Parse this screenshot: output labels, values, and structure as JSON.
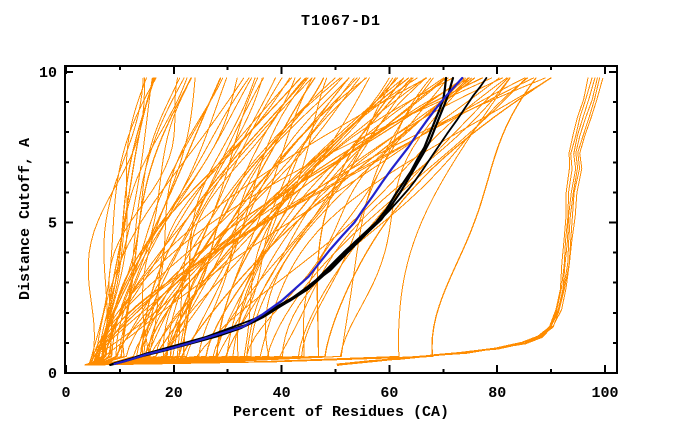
{
  "chart_data": {
    "type": "line",
    "title": "T1067-D1",
    "xlabel": "Percent of Residues (CA)",
    "ylabel": "Distance Cutoff, A",
    "xlim": [
      0,
      102
    ],
    "ylim": [
      0,
      10.2
    ],
    "grid": false,
    "legend": false,
    "background": "#ffffff",
    "axis_color": "#000000",
    "x_axis": {
      "major_ticks": [
        0,
        20,
        40,
        60,
        80,
        100
      ],
      "major_labels": [
        "0",
        "20",
        "40",
        "60",
        "80",
        "100"
      ],
      "minor_ticks": [
        10,
        30,
        50,
        70,
        90
      ]
    },
    "y_axis": {
      "major_ticks": [
        0,
        5,
        10
      ],
      "major_labels": [
        "0",
        "5",
        "10"
      ],
      "minor_ticks": [
        1,
        2,
        3,
        4,
        6,
        7,
        8,
        9
      ]
    },
    "colors": {
      "orange": "#FF8C00",
      "black": "#000000",
      "blue": "#2222CC"
    },
    "series": [
      {
        "id": "orange_models",
        "kind": "generated-bundle",
        "label": "predicted models (orange bundle)",
        "color": "#FF8C00",
        "count": 95,
        "seed": 42,
        "start_x_range": [
          3.5,
          5.5
        ],
        "start_y": 0.27,
        "top_y": 9.8,
        "top_x_range": [
          13,
          90
        ],
        "bottom_sweep_max_x": 68
      },
      {
        "id": "right_outlier_models",
        "kind": "bundle-from-points",
        "label": "outlier model group (orange, right side)",
        "color": "#FF8C00",
        "count": 6,
        "points": [
          [
            50.5,
            0.28
          ],
          [
            56,
            0.38
          ],
          [
            62,
            0.48
          ],
          [
            68,
            0.58
          ],
          [
            74,
            0.68
          ],
          [
            80,
            0.82
          ],
          [
            85,
            1.0
          ],
          [
            88,
            1.2
          ],
          [
            90,
            1.55
          ],
          [
            91.3,
            2.1
          ],
          [
            92.2,
            2.8
          ],
          [
            92.8,
            3.6
          ],
          [
            93.2,
            4.4
          ],
          [
            93.5,
            5.2
          ],
          [
            93.8,
            6.0
          ],
          [
            94.6,
            6.8
          ],
          [
            94.3,
            7.3
          ],
          [
            95.2,
            7.9
          ],
          [
            96.2,
            8.5
          ],
          [
            97.2,
            9.1
          ],
          [
            98.3,
            9.8
          ]
        ]
      },
      {
        "id": "black_model_1",
        "kind": "line",
        "label": "highlighted model (black)",
        "color": "#000000",
        "width": 2.2,
        "points": [
          [
            8.2,
            0.27
          ],
          [
            11,
            0.4
          ],
          [
            14.5,
            0.58
          ],
          [
            19,
            0.78
          ],
          [
            23.5,
            1.0
          ],
          [
            28,
            1.22
          ],
          [
            32.5,
            1.5
          ],
          [
            36.5,
            1.85
          ],
          [
            40.5,
            2.3
          ],
          [
            44,
            2.75
          ],
          [
            46.5,
            3.1
          ],
          [
            49,
            3.55
          ],
          [
            51.5,
            4.0
          ],
          [
            54.5,
            4.5
          ],
          [
            57.5,
            5.0
          ],
          [
            59.5,
            5.45
          ],
          [
            61,
            5.9
          ],
          [
            62.5,
            6.3
          ],
          [
            64,
            6.7
          ],
          [
            65.2,
            7.1
          ],
          [
            66.5,
            7.5
          ],
          [
            67.5,
            7.95
          ],
          [
            68.5,
            8.4
          ],
          [
            69.3,
            8.75
          ],
          [
            70,
            9.1
          ],
          [
            70.3,
            9.45
          ],
          [
            70.5,
            9.8
          ]
        ]
      },
      {
        "id": "black_model_2",
        "kind": "line",
        "label": "highlighted model (black)",
        "color": "#000000",
        "width": 2.2,
        "points": [
          [
            8.6,
            0.3
          ],
          [
            11.6,
            0.45
          ],
          [
            15,
            0.65
          ],
          [
            19.8,
            0.85
          ],
          [
            24.5,
            1.1
          ],
          [
            29,
            1.35
          ],
          [
            33.5,
            1.6
          ],
          [
            37.5,
            2.0
          ],
          [
            41.5,
            2.4
          ],
          [
            45,
            2.8
          ],
          [
            47.5,
            3.2
          ],
          [
            50,
            3.65
          ],
          [
            52.5,
            4.1
          ],
          [
            55.5,
            4.6
          ],
          [
            58.5,
            5.1
          ],
          [
            60.3,
            5.55
          ],
          [
            62,
            6.0
          ],
          [
            63.5,
            6.45
          ],
          [
            65,
            6.9
          ],
          [
            66.3,
            7.3
          ],
          [
            67.5,
            7.7
          ],
          [
            68.5,
            8.15
          ],
          [
            69.5,
            8.6
          ],
          [
            70.3,
            8.95
          ],
          [
            71,
            9.3
          ],
          [
            71.4,
            9.55
          ],
          [
            71.8,
            9.8
          ]
        ]
      },
      {
        "id": "black_model_3",
        "kind": "line",
        "label": "highlighted model (black, thin)",
        "color": "#000000",
        "width": 1.8,
        "points": [
          [
            9,
            0.33
          ],
          [
            12.5,
            0.5
          ],
          [
            16,
            0.7
          ],
          [
            21,
            0.95
          ],
          [
            26,
            1.2
          ],
          [
            30.5,
            1.5
          ],
          [
            35,
            1.8
          ],
          [
            39,
            2.2
          ],
          [
            43,
            2.6
          ],
          [
            46,
            3.0
          ],
          [
            49,
            3.4
          ],
          [
            51.7,
            3.9
          ],
          [
            54.5,
            4.4
          ],
          [
            57.3,
            4.9
          ],
          [
            60,
            5.4
          ],
          [
            61.8,
            5.75
          ],
          [
            63.5,
            6.1
          ],
          [
            64.8,
            6.4
          ],
          [
            66,
            6.7
          ],
          [
            67.5,
            7.1
          ],
          [
            69,
            7.5
          ],
          [
            70.7,
            7.95
          ],
          [
            72.5,
            8.4
          ],
          [
            74,
            8.8
          ],
          [
            75.5,
            9.2
          ],
          [
            76.8,
            9.5
          ],
          [
            78,
            9.8
          ]
        ]
      },
      {
        "id": "blue_model",
        "kind": "line",
        "label": "highlighted model (blue)",
        "color": "#2222CC",
        "width": 2.2,
        "points": [
          [
            9,
            0.3
          ],
          [
            12,
            0.45
          ],
          [
            15,
            0.62
          ],
          [
            19.5,
            0.82
          ],
          [
            24,
            1.05
          ],
          [
            28.5,
            1.3
          ],
          [
            33,
            1.55
          ],
          [
            36.5,
            1.95
          ],
          [
            40,
            2.4
          ],
          [
            42.5,
            2.8
          ],
          [
            45,
            3.2
          ],
          [
            47,
            3.65
          ],
          [
            49,
            4.1
          ],
          [
            51.2,
            4.55
          ],
          [
            53.5,
            5.0
          ],
          [
            55.2,
            5.45
          ],
          [
            57,
            5.9
          ],
          [
            58.7,
            6.35
          ],
          [
            60.5,
            6.8
          ],
          [
            62,
            7.15
          ],
          [
            63.5,
            7.5
          ],
          [
            65.2,
            7.95
          ],
          [
            67,
            8.4
          ],
          [
            68.7,
            8.8
          ],
          [
            70.5,
            9.2
          ],
          [
            72,
            9.5
          ],
          [
            73.5,
            9.8
          ]
        ]
      }
    ]
  }
}
